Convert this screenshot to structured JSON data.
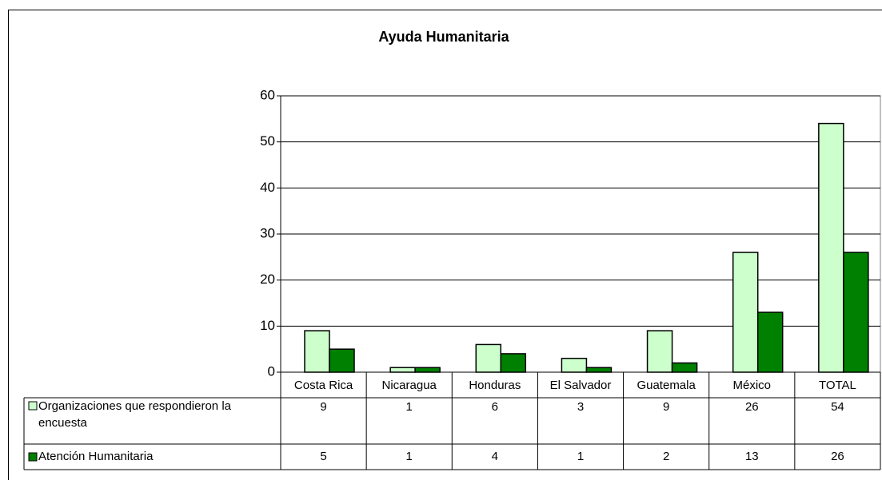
{
  "chart_data": {
    "type": "bar",
    "title": "Ayuda Humanitaria",
    "categories": [
      "Costa Rica",
      "Nicaragua",
      "Honduras",
      "El Salvador",
      "Guatemala",
      "México",
      "TOTAL"
    ],
    "series": [
      {
        "name": "Organizaciones que respondieron la encuesta",
        "color": "#ccffcc",
        "values": [
          9,
          1,
          6,
          3,
          9,
          26,
          54
        ]
      },
      {
        "name": "Atención Humanitaria",
        "color": "#008000",
        "values": [
          5,
          1,
          4,
          1,
          2,
          13,
          26
        ]
      }
    ],
    "ylim": [
      0,
      60
    ],
    "yticks": [
      0,
      10,
      20,
      30,
      40,
      50,
      60
    ],
    "grid": true
  }
}
